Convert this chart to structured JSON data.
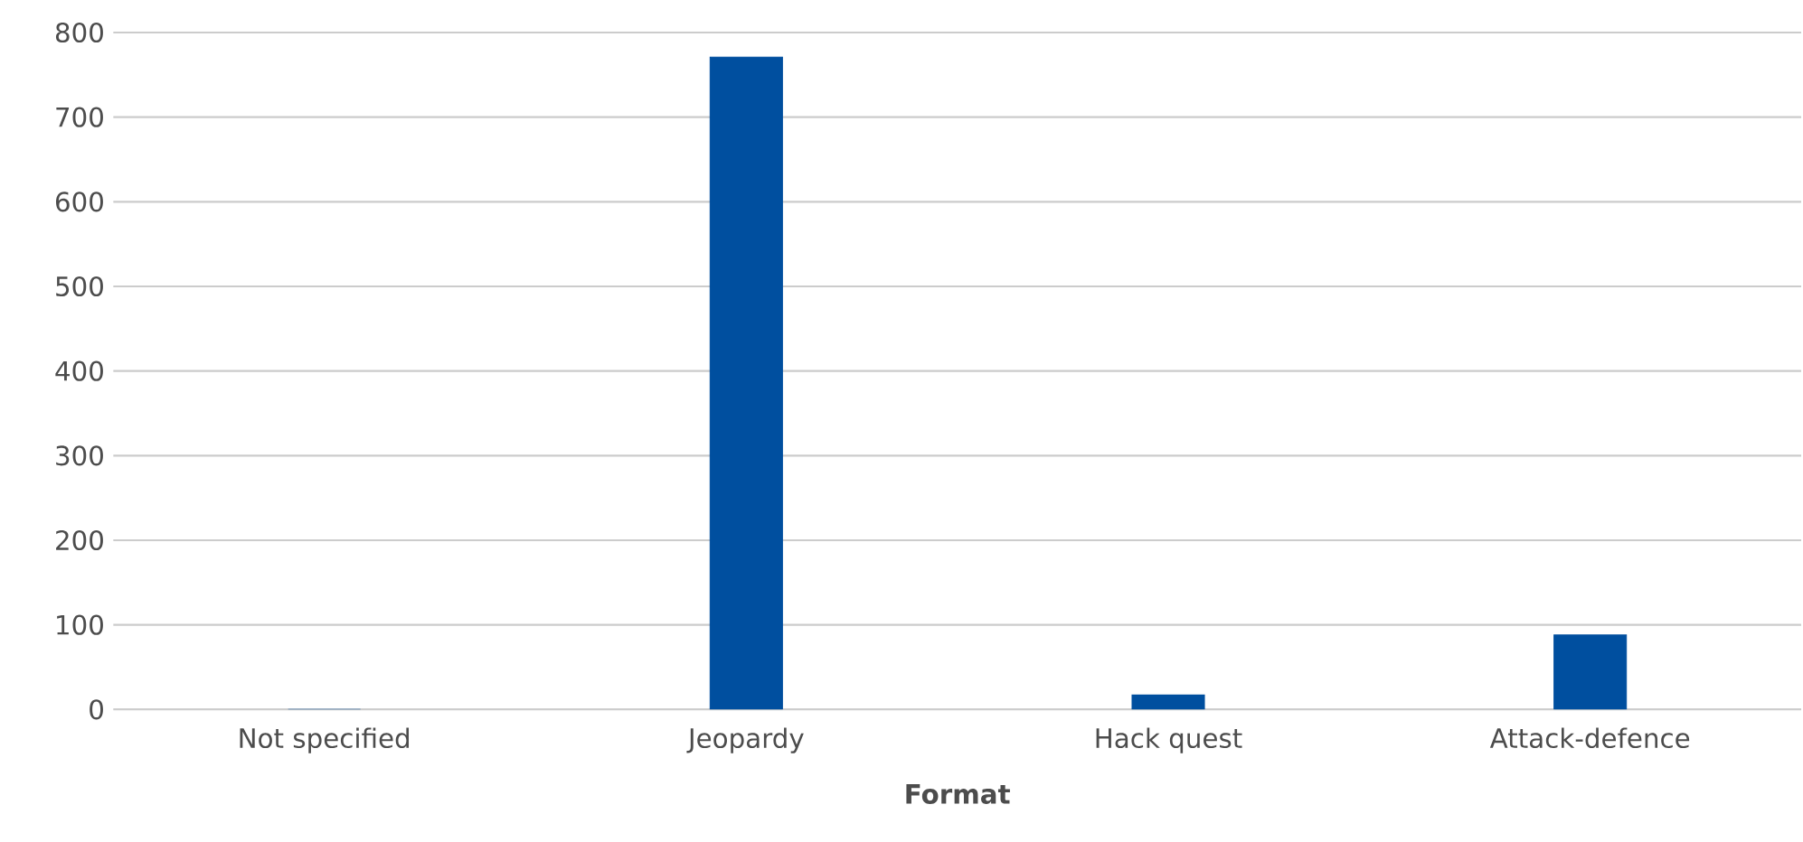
{
  "chart_data": {
    "type": "bar",
    "xlabel": "Format",
    "categories": [
      "Not specified",
      "Jeopardy",
      "Hack quest",
      "Attack-defence"
    ],
    "values": [
      0,
      771,
      17,
      88
    ],
    "color": "#004f9f",
    "ylim": [
      0,
      800
    ],
    "yticks": [
      0,
      100,
      200,
      300,
      400,
      500,
      600,
      700,
      800
    ],
    "grid": "y"
  }
}
